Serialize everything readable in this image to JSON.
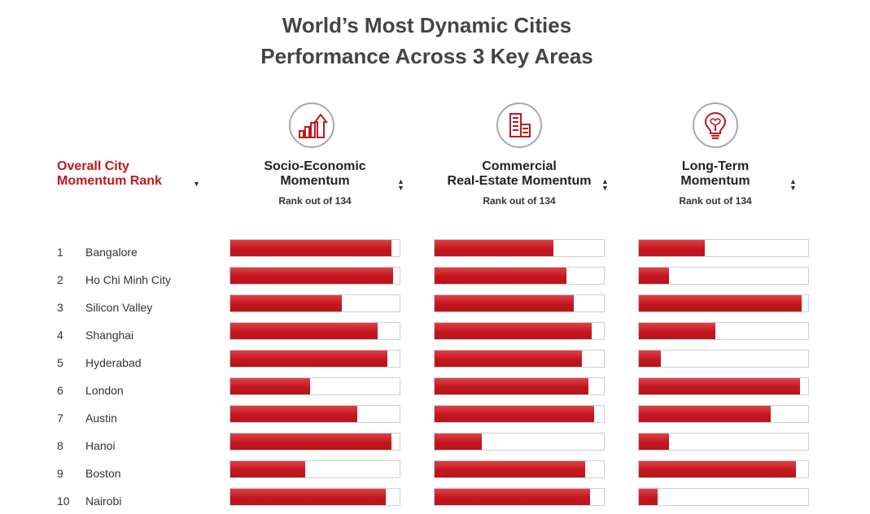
{
  "chart_data": {
    "type": "bar",
    "title": "World’s Most Dynamic Cities",
    "subtitle": "Performance Across 3 Key Areas",
    "rank_header": "Overall City Momentum Rank",
    "rank_header_lines": [
      "Overall City",
      "Momentum Rank"
    ],
    "metrics": [
      {
        "key": "socio",
        "name": "Socio-Economic Momentum",
        "lines": [
          "Socio-Economic",
          "Momentum"
        ],
        "sublabel": "Rank out of 134",
        "icon": "growth-chart-icon"
      },
      {
        "key": "commercial",
        "name": "Commercial Real-Estate Momentum",
        "lines": [
          "Commercial",
          "Real-Estate Momentum"
        ],
        "sublabel": "Rank out of 134",
        "icon": "buildings-icon"
      },
      {
        "key": "longterm",
        "name": "Long-Term Momentum",
        "lines": [
          "Long-Term",
          "Momentum"
        ],
        "sublabel": "Rank out of 134",
        "icon": "lightbulb-brain-icon"
      }
    ],
    "scale_max": 1.0,
    "cities": [
      {
        "rank": "1",
        "name": "Bangalore",
        "socio": 0.95,
        "commercial": 0.7,
        "longterm": 0.39
      },
      {
        "rank": "2",
        "name": "Ho Chi Minh City",
        "socio": 0.96,
        "commercial": 0.78,
        "longterm": 0.18
      },
      {
        "rank": "3",
        "name": "Silicon Valley",
        "socio": 0.66,
        "commercial": 0.82,
        "longterm": 0.96
      },
      {
        "rank": "4",
        "name": "Shanghai",
        "socio": 0.87,
        "commercial": 0.93,
        "longterm": 0.45
      },
      {
        "rank": "5",
        "name": "Hyderabad",
        "socio": 0.93,
        "commercial": 0.87,
        "longterm": 0.13
      },
      {
        "rank": "6",
        "name": "London",
        "socio": 0.47,
        "commercial": 0.91,
        "longterm": 0.95
      },
      {
        "rank": "7",
        "name": "Austin",
        "socio": 0.75,
        "commercial": 0.94,
        "longterm": 0.78
      },
      {
        "rank": "8",
        "name": "Hanoi",
        "socio": 0.95,
        "commercial": 0.28,
        "longterm": 0.18
      },
      {
        "rank": "9",
        "name": "Boston",
        "socio": 0.44,
        "commercial": 0.89,
        "longterm": 0.93
      },
      {
        "rank": "10",
        "name": "Nairobi",
        "socio": 0.92,
        "commercial": 0.92,
        "longterm": 0.11
      }
    ]
  },
  "colors": {
    "accent": "#c0161f",
    "bar_fill": "#c4161f",
    "track_border": "#cfcfcf",
    "icon_border": "#a9a9a9"
  }
}
